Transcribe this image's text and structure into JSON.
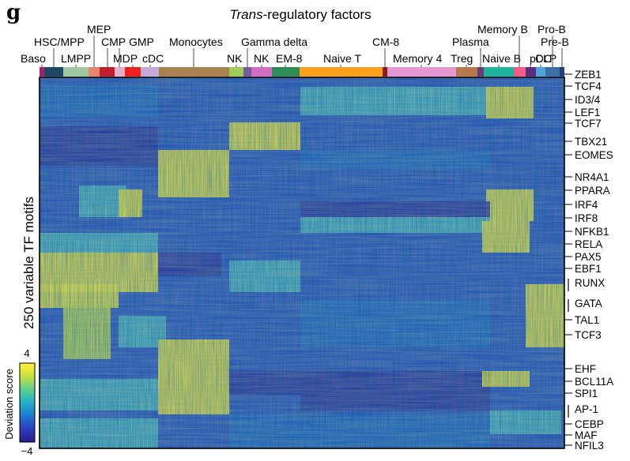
{
  "chart_data": {
    "type": "heatmap",
    "panel_label": "g",
    "title_italic": "Trans",
    "title_rest": "-regulatory factors",
    "ylabel": "250 variable TF motifs",
    "colorbar": {
      "label": "Deviation score",
      "max_label": "4",
      "min_label": "−4",
      "range": [
        -4,
        4
      ],
      "colors": [
        "#2a1a8a",
        "#2b3fbf",
        "#1f78d0",
        "#22b0c8",
        "#5fd08a",
        "#c8e040",
        "#fff23a"
      ]
    },
    "cell_types": [
      {
        "name": "Baso",
        "color": "#a6206d"
      },
      {
        "name": "HSC/MPP",
        "color": "#1e4868"
      },
      {
        "name": "LMPP",
        "color": "#9fc9a0"
      },
      {
        "name": "MEP",
        "color": "#e8846c"
      },
      {
        "name": "CMP",
        "color": "#c11f2f"
      },
      {
        "name": "GMP",
        "color": "#e2b0c8"
      },
      {
        "name": "MDP",
        "color": "#ee2020"
      },
      {
        "name": "cDC",
        "color": "#c7a9d9"
      },
      {
        "name": "Monocytes",
        "color": "#a98150"
      },
      {
        "name": "NK",
        "color": "#9ccf5a"
      },
      {
        "name": "Gamma delta",
        "color": "#7b5aa4"
      },
      {
        "name": "NK",
        "color": "#d16ec3"
      },
      {
        "name": "EM-8",
        "color": "#2e8b57"
      },
      {
        "name": "Naive T",
        "color": "#ff9f1c"
      },
      {
        "name": "CM-8",
        "color": "#8b1a1a"
      },
      {
        "name": "Memory 4",
        "color": "#e597d2"
      },
      {
        "name": "Treg",
        "color": "#b47a4e"
      },
      {
        "name": "Plasma",
        "color": "#6b3a78"
      },
      {
        "name": "Naive B",
        "color": "#1fb59c"
      },
      {
        "name": "Memory B",
        "color": "#f25c8a"
      },
      {
        "name": "pDC",
        "color": "#5a2d82"
      },
      {
        "name": "CLP",
        "color": "#4fa3d8"
      },
      {
        "name": "Pro-B",
        "color": "#3c6ea8"
      },
      {
        "name": "Pre-B",
        "color": "#233f7a"
      }
    ],
    "tf_labels": [
      "ZEB1",
      "TCF4",
      "ID3/4",
      "LEF1",
      "TCF7",
      "TBX21",
      "EOMES",
      "NR4A1",
      "PPARA",
      "IRF4",
      "IRF8",
      "NFKB1",
      "RELA",
      "PAX5",
      "EBF1",
      "RUNX",
      "GATA",
      "TAL1",
      "TCF3",
      "EHF",
      "BCL11A",
      "SPI1",
      "AP-1",
      "CEBP",
      "MAF",
      "NFIL3"
    ],
    "n_rows": 250,
    "legend": "none",
    "grid": false
  }
}
